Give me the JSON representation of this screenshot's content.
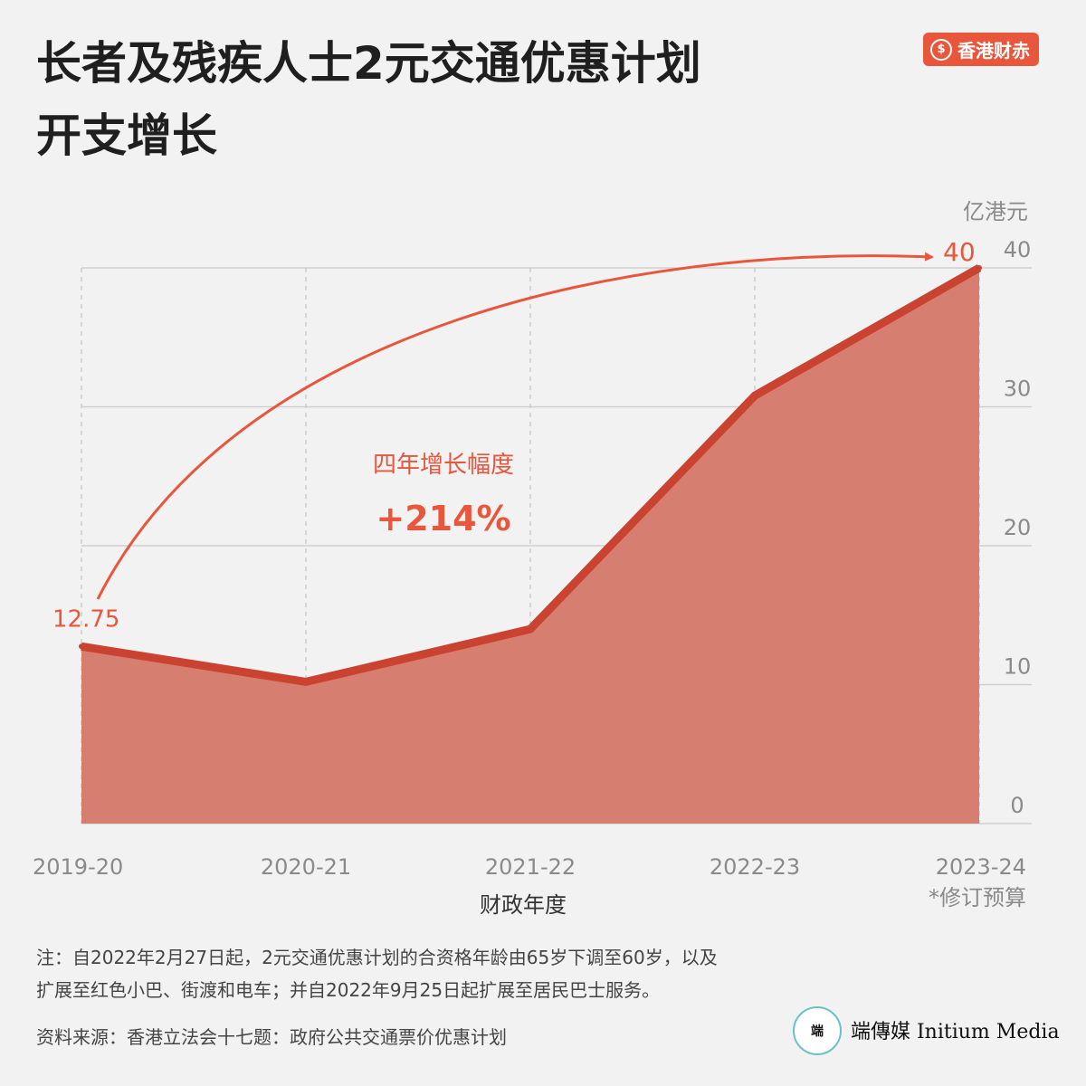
{
  "header": {
    "title_line1": "长者及残疾人士2元交通优惠计划",
    "title_line2": "开支增长",
    "brand_label": "香港财赤",
    "brand_icon": "dollar-coin-icon"
  },
  "chart_data": {
    "type": "area",
    "title": "长者及残疾人士2元交通优惠计划开支增长",
    "categories": [
      "2019-20",
      "2020-21",
      "2021-22",
      "2022-23",
      "2023-24"
    ],
    "values": [
      12.75,
      10.2,
      14,
      30.8,
      40
    ],
    "xlabel": "财政年度",
    "ylabel": "亿港元",
    "ylim": [
      0,
      40
    ],
    "yticks": [
      "0",
      "10",
      "20",
      "30",
      "40"
    ],
    "grid": true,
    "footnote_label": "*修订预算",
    "annotations": {
      "start_label": "12.75",
      "end_label": "40",
      "growth_caption": "四年增长幅度",
      "growth_value": "+214%"
    },
    "colors": {
      "fill": "#d67f70",
      "line": "#c94330",
      "accent": "#e8563c",
      "grid": "#cfcfcf"
    }
  },
  "footer": {
    "note_line1": "注：自2022年2月27日起，2元交通优惠计划的合资格年龄由65岁下调至60岁，以及",
    "note_line2": "扩展至红色小巴、街渡和电车；并自2022年9月25日起扩展至居民巴士服务。",
    "source": "资料来源：香港立法会十七题：政府公共交通票价优惠计划",
    "logo_mark": "端",
    "logo_text": "端傳媒 Initium Media"
  }
}
